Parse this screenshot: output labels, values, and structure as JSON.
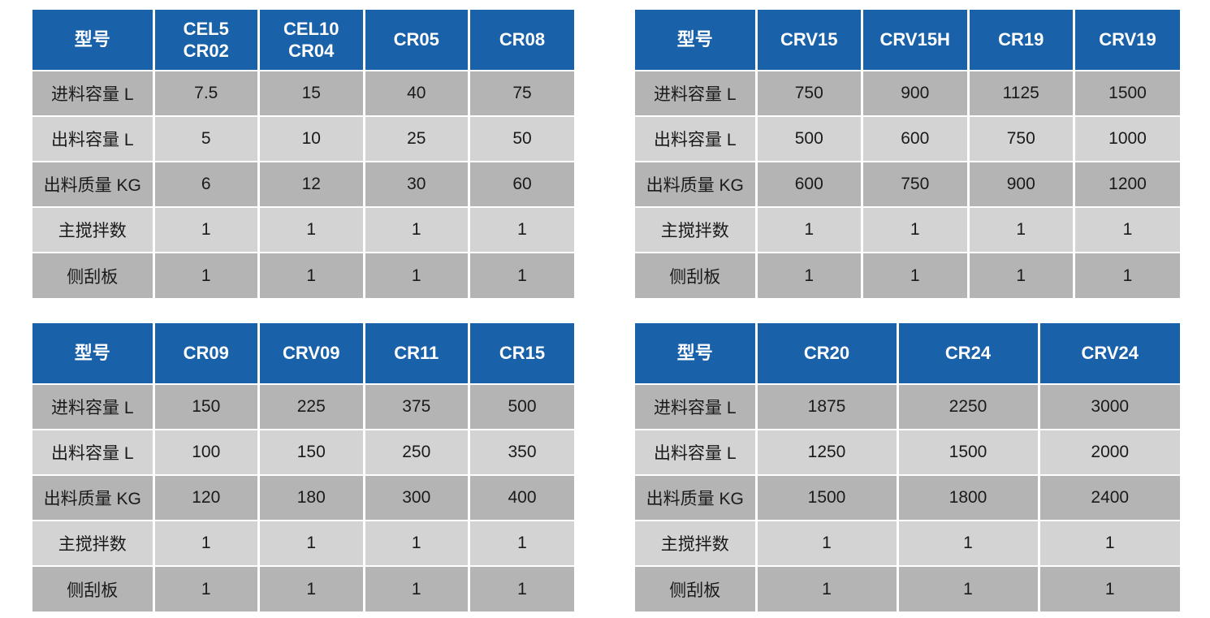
{
  "colors": {
    "header_bg": "#1961a9",
    "header_text": "#ffffff",
    "row_dark_bg": "#b4b4b4",
    "row_light_bg": "#d3d3d3",
    "body_text": "#1a1a1a",
    "divider": "#ffffff",
    "page_bg": "#ffffff"
  },
  "tables": [
    {
      "columns": [
        "型号",
        "CEL5\nCR02",
        "CEL10\nCR04",
        "CR05",
        "CR08"
      ],
      "rows": [
        {
          "label": "进料容量 L",
          "values": [
            "7.5",
            "15",
            "40",
            "75"
          ]
        },
        {
          "label": "出料容量 L",
          "values": [
            "5",
            "10",
            "25",
            "50"
          ]
        },
        {
          "label": "出料质量 KG",
          "values": [
            "6",
            "12",
            "30",
            "60"
          ]
        },
        {
          "label": "主搅拌数",
          "values": [
            "1",
            "1",
            "1",
            "1"
          ]
        },
        {
          "label": "侧刮板",
          "values": [
            "1",
            "1",
            "1",
            "1"
          ]
        }
      ]
    },
    {
      "columns": [
        "型号",
        "CRV15",
        "CRV15H",
        "CR19",
        "CRV19"
      ],
      "rows": [
        {
          "label": "进料容量 L",
          "values": [
            "750",
            "900",
            "1125",
            "1500"
          ]
        },
        {
          "label": "出料容量 L",
          "values": [
            "500",
            "600",
            "750",
            "1000"
          ]
        },
        {
          "label": "出料质量 KG",
          "values": [
            "600",
            "750",
            "900",
            "1200"
          ]
        },
        {
          "label": "主搅拌数",
          "values": [
            "1",
            "1",
            "1",
            "1"
          ]
        },
        {
          "label": "侧刮板",
          "values": [
            "1",
            "1",
            "1",
            "1"
          ]
        }
      ]
    },
    {
      "columns": [
        "型号",
        "CR09",
        "CRV09",
        "CR11",
        "CR15"
      ],
      "rows": [
        {
          "label": "进料容量 L",
          "values": [
            "150",
            "225",
            "375",
            "500"
          ]
        },
        {
          "label": "出料容量 L",
          "values": [
            "100",
            "150",
            "250",
            "350"
          ]
        },
        {
          "label": "出料质量 KG",
          "values": [
            "120",
            "180",
            "300",
            "400"
          ]
        },
        {
          "label": "主搅拌数",
          "values": [
            "1",
            "1",
            "1",
            "1"
          ]
        },
        {
          "label": "侧刮板",
          "values": [
            "1",
            "1",
            "1",
            "1"
          ]
        }
      ]
    },
    {
      "columns": [
        "型号",
        "CR20",
        "CR24",
        "CRV24"
      ],
      "rows": [
        {
          "label": "进料容量 L",
          "values": [
            "1875",
            "2250",
            "3000"
          ]
        },
        {
          "label": "出料容量 L",
          "values": [
            "1250",
            "1500",
            "2000"
          ]
        },
        {
          "label": "出料质量 KG",
          "values": [
            "1500",
            "1800",
            "2400"
          ]
        },
        {
          "label": "主搅拌数",
          "values": [
            "1",
            "1",
            "1"
          ]
        },
        {
          "label": "侧刮板",
          "values": [
            "1",
            "1",
            "1"
          ]
        }
      ]
    }
  ]
}
